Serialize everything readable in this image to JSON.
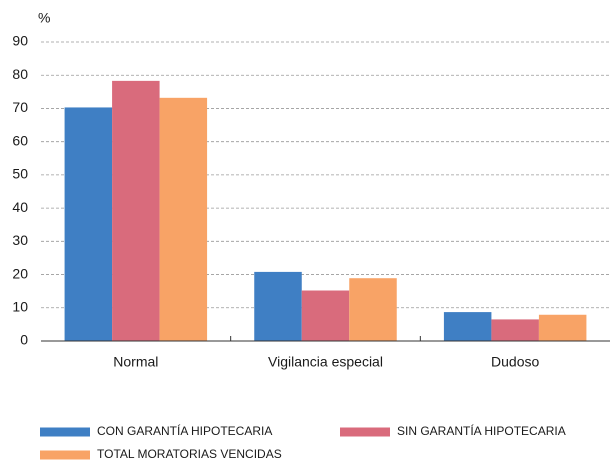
{
  "chart_data": {
    "type": "bar",
    "y_label": "%",
    "categories": [
      "Normal",
      "Vigilancia especial",
      "Dudoso"
    ],
    "series": [
      {
        "name": "CON GARANTÍA HIPOTECARIA",
        "color": "#3f7fc4",
        "values": [
          70.3,
          20.8,
          8.7
        ]
      },
      {
        "name": "SIN GARANTÍA HIPOTECARIA",
        "color": "#d96b7c",
        "values": [
          78.3,
          15.2,
          6.5
        ]
      },
      {
        "name": "TOTAL MORATORIAS VENCIDAS",
        "color": "#f8a366",
        "values": [
          73.2,
          18.9,
          7.9
        ]
      }
    ],
    "ylim": [
      0,
      90
    ],
    "yticks": [
      0,
      10,
      20,
      30,
      40,
      50,
      60,
      70,
      80,
      90
    ],
    "grid": true
  }
}
